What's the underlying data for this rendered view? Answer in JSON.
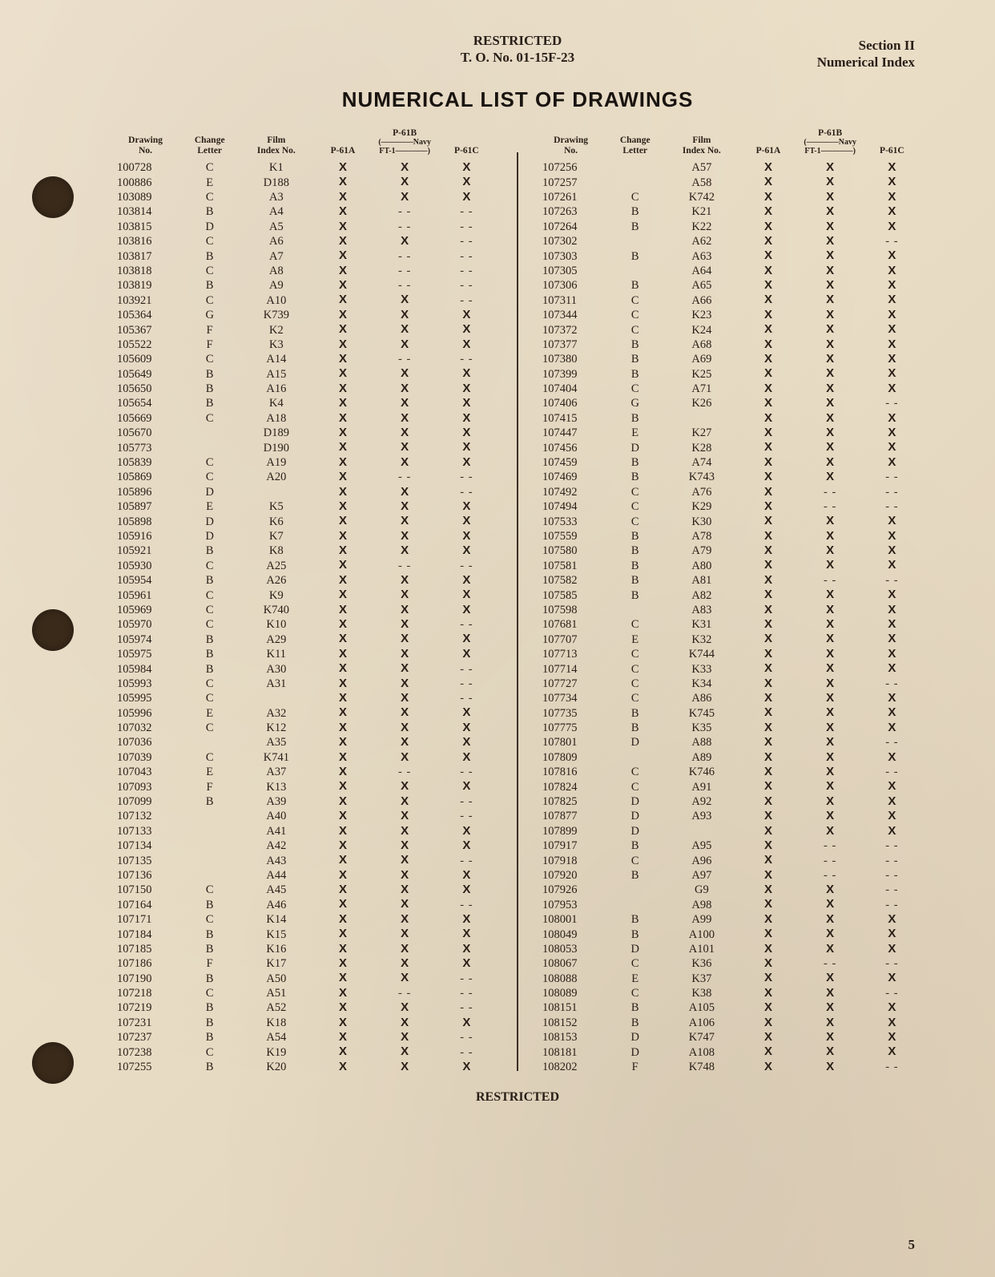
{
  "header": {
    "restricted": "RESTRICTED",
    "to_no": "T. O. No. 01-15F-23",
    "section": "Section II",
    "index_label": "Numerical Index"
  },
  "title": "NUMERICAL LIST OF DRAWINGS",
  "footer": {
    "restricted": "RESTRICTED",
    "page_number": "5"
  },
  "table_headers": {
    "drawing_no": "Drawing\nNo.",
    "change_letter": "Change\nLetter",
    "film_index_no": "Film\nIndex No.",
    "p61a": "P-61A",
    "p61b": "P-61B",
    "p61c": "P-61C",
    "navy_sub": "(————Navy FT-1————)"
  },
  "marks": {
    "x": "X",
    "dash": "- -"
  },
  "left_rows": [
    [
      "100728",
      "C",
      "K1",
      "X",
      "X",
      "X"
    ],
    [
      "100886",
      "E",
      "D188",
      "X",
      "X",
      "X"
    ],
    [
      "103089",
      "C",
      "A3",
      "X",
      "X",
      "X"
    ],
    [
      "103814",
      "B",
      "A4",
      "X",
      "- -",
      "- -"
    ],
    [
      "103815",
      "D",
      "A5",
      "X",
      "- -",
      "- -"
    ],
    [
      "103816",
      "C",
      "A6",
      "X",
      "X",
      "- -"
    ],
    [
      "103817",
      "B",
      "A7",
      "X",
      "- -",
      "- -"
    ],
    [
      "103818",
      "C",
      "A8",
      "X",
      "- -",
      "- -"
    ],
    [
      "103819",
      "B",
      "A9",
      "X",
      "- -",
      "- -"
    ],
    [
      "103921",
      "C",
      "A10",
      "X",
      "X",
      "- -"
    ],
    [
      "105364",
      "G",
      "K739",
      "X",
      "X",
      "X"
    ],
    [
      "105367",
      "F",
      "K2",
      "X",
      "X",
      "X"
    ],
    [
      "105522",
      "F",
      "K3",
      "X",
      "X",
      "X"
    ],
    [
      "105609",
      "C",
      "A14",
      "X",
      "- -",
      "- -"
    ],
    [
      "105649",
      "B",
      "A15",
      "X",
      "X",
      "X"
    ],
    [
      "105650",
      "B",
      "A16",
      "X",
      "X",
      "X"
    ],
    [
      "105654",
      "B",
      "K4",
      "X",
      "X",
      "X"
    ],
    [
      "105669",
      "C",
      "A18",
      "X",
      "X",
      "X"
    ],
    [
      "105670",
      "",
      "D189",
      "X",
      "X",
      "X"
    ],
    [
      "105773",
      "",
      "D190",
      "X",
      "X",
      "X"
    ],
    [
      "105839",
      "C",
      "A19",
      "X",
      "X",
      "X"
    ],
    [
      "105869",
      "C",
      "A20",
      "X",
      "- -",
      "- -"
    ],
    [
      "105896",
      "D",
      "",
      "X",
      "X",
      "- -"
    ],
    [
      "105897",
      "E",
      "K5",
      "X",
      "X",
      "X"
    ],
    [
      "105898",
      "D",
      "K6",
      "X",
      "X",
      "X"
    ],
    [
      "105916",
      "D",
      "K7",
      "X",
      "X",
      "X"
    ],
    [
      "105921",
      "B",
      "K8",
      "X",
      "X",
      "X"
    ],
    [
      "105930",
      "C",
      "A25",
      "X",
      "- -",
      "- -"
    ],
    [
      "105954",
      "B",
      "A26",
      "X",
      "X",
      "X"
    ],
    [
      "105961",
      "C",
      "K9",
      "X",
      "X",
      "X"
    ],
    [
      "105969",
      "C",
      "K740",
      "X",
      "X",
      "X"
    ],
    [
      "105970",
      "C",
      "K10",
      "X",
      "X",
      "- -"
    ],
    [
      "105974",
      "B",
      "A29",
      "X",
      "X",
      "X"
    ],
    [
      "105975",
      "B",
      "K11",
      "X",
      "X",
      "X"
    ],
    [
      "105984",
      "B",
      "A30",
      "X",
      "X",
      "- -"
    ],
    [
      "105993",
      "C",
      "A31",
      "X",
      "X",
      "- -"
    ],
    [
      "105995",
      "C",
      "",
      "X",
      "X",
      "- -"
    ],
    [
      "105996",
      "E",
      "A32",
      "X",
      "X",
      "X"
    ],
    [
      "107032",
      "C",
      "K12",
      "X",
      "X",
      "X"
    ],
    [
      "107036",
      "",
      "A35",
      "X",
      "X",
      "X"
    ],
    [
      "107039",
      "C",
      "K741",
      "X",
      "X",
      "X"
    ],
    [
      "107043",
      "E",
      "A37",
      "X",
      "- -",
      "- -"
    ],
    [
      "107093",
      "F",
      "K13",
      "X",
      "X",
      "X"
    ],
    [
      "107099",
      "B",
      "A39",
      "X",
      "X",
      "- -"
    ],
    [
      "107132",
      "",
      "A40",
      "X",
      "X",
      "- -"
    ],
    [
      "107133",
      "",
      "A41",
      "X",
      "X",
      "X"
    ],
    [
      "107134",
      "",
      "A42",
      "X",
      "X",
      "X"
    ],
    [
      "107135",
      "",
      "A43",
      "X",
      "X",
      "- -"
    ],
    [
      "107136",
      "",
      "A44",
      "X",
      "X",
      "X"
    ],
    [
      "107150",
      "C",
      "A45",
      "X",
      "X",
      "X"
    ],
    [
      "107164",
      "B",
      "A46",
      "X",
      "X",
      "- -"
    ],
    [
      "107171",
      "C",
      "K14",
      "X",
      "X",
      "X"
    ],
    [
      "107184",
      "B",
      "K15",
      "X",
      "X",
      "X"
    ],
    [
      "107185",
      "B",
      "K16",
      "X",
      "X",
      "X"
    ],
    [
      "107186",
      "F",
      "K17",
      "X",
      "X",
      "X"
    ],
    [
      "107190",
      "B",
      "A50",
      "X",
      "X",
      "- -"
    ],
    [
      "107218",
      "C",
      "A51",
      "X",
      "- -",
      "- -"
    ],
    [
      "107219",
      "B",
      "A52",
      "X",
      "X",
      "- -"
    ],
    [
      "107231",
      "B",
      "K18",
      "X",
      "X",
      "X"
    ],
    [
      "107237",
      "B",
      "A54",
      "X",
      "X",
      "- -"
    ],
    [
      "107238",
      "C",
      "K19",
      "X",
      "X",
      "- -"
    ],
    [
      "107255",
      "B",
      "K20",
      "X",
      "X",
      "X"
    ]
  ],
  "right_rows": [
    [
      "107256",
      "",
      "A57",
      "X",
      "X",
      "X"
    ],
    [
      "107257",
      "",
      "A58",
      "X",
      "X",
      "X"
    ],
    [
      "107261",
      "C",
      "K742",
      "X",
      "X",
      "X"
    ],
    [
      "107263",
      "B",
      "K21",
      "X",
      "X",
      "X"
    ],
    [
      "107264",
      "B",
      "K22",
      "X",
      "X",
      "X"
    ],
    [
      "107302",
      "",
      "A62",
      "X",
      "X",
      "- -"
    ],
    [
      "107303",
      "B",
      "A63",
      "X",
      "X",
      "X"
    ],
    [
      "107305",
      "",
      "A64",
      "X",
      "X",
      "X"
    ],
    [
      "107306",
      "B",
      "A65",
      "X",
      "X",
      "X"
    ],
    [
      "107311",
      "C",
      "A66",
      "X",
      "X",
      "X"
    ],
    [
      "107344",
      "C",
      "K23",
      "X",
      "X",
      "X"
    ],
    [
      "107372",
      "C",
      "K24",
      "X",
      "X",
      "X"
    ],
    [
      "107377",
      "B",
      "A68",
      "X",
      "X",
      "X"
    ],
    [
      "107380",
      "B",
      "A69",
      "X",
      "X",
      "X"
    ],
    [
      "107399",
      "B",
      "K25",
      "X",
      "X",
      "X"
    ],
    [
      "107404",
      "C",
      "A71",
      "X",
      "X",
      "X"
    ],
    [
      "107406",
      "G",
      "K26",
      "X",
      "X",
      "- -"
    ],
    [
      "107415",
      "B",
      "",
      "X",
      "X",
      "X"
    ],
    [
      "107447",
      "E",
      "K27",
      "X",
      "X",
      "X"
    ],
    [
      "107456",
      "D",
      "K28",
      "X",
      "X",
      "X"
    ],
    [
      "107459",
      "B",
      "A74",
      "X",
      "X",
      "X"
    ],
    [
      "107469",
      "B",
      "K743",
      "X",
      "X",
      "- -"
    ],
    [
      "107492",
      "C",
      "A76",
      "X",
      "- -",
      "- -"
    ],
    [
      "107494",
      "C",
      "K29",
      "X",
      "- -",
      "- -"
    ],
    [
      "107533",
      "C",
      "K30",
      "X",
      "X",
      "X"
    ],
    [
      "107559",
      "B",
      "A78",
      "X",
      "X",
      "X"
    ],
    [
      "107580",
      "B",
      "A79",
      "X",
      "X",
      "X"
    ],
    [
      "107581",
      "B",
      "A80",
      "X",
      "X",
      "X"
    ],
    [
      "107582",
      "B",
      "A81",
      "X",
      "- -",
      "- -"
    ],
    [
      "107585",
      "B",
      "A82",
      "X",
      "X",
      "X"
    ],
    [
      "107598",
      "",
      "A83",
      "X",
      "X",
      "X"
    ],
    [
      "107681",
      "C",
      "K31",
      "X",
      "X",
      "X"
    ],
    [
      "107707",
      "E",
      "K32",
      "X",
      "X",
      "X"
    ],
    [
      "107713",
      "C",
      "K744",
      "X",
      "X",
      "X"
    ],
    [
      "107714",
      "C",
      "K33",
      "X",
      "X",
      "X"
    ],
    [
      "107727",
      "C",
      "K34",
      "X",
      "X",
      "- -"
    ],
    [
      "107734",
      "C",
      "A86",
      "X",
      "X",
      "X"
    ],
    [
      "107735",
      "B",
      "K745",
      "X",
      "X",
      "X"
    ],
    [
      "107775",
      "B",
      "K35",
      "X",
      "X",
      "X"
    ],
    [
      "107801",
      "D",
      "A88",
      "X",
      "X",
      "- -"
    ],
    [
      "107809",
      "",
      "A89",
      "X",
      "X",
      "X"
    ],
    [
      "107816",
      "C",
      "K746",
      "X",
      "X",
      "- -"
    ],
    [
      "107824",
      "C",
      "A91",
      "X",
      "X",
      "X"
    ],
    [
      "107825",
      "D",
      "A92",
      "X",
      "X",
      "X"
    ],
    [
      "107877",
      "D",
      "A93",
      "X",
      "X",
      "X"
    ],
    [
      "107899",
      "D",
      "",
      "X",
      "X",
      "X"
    ],
    [
      "107917",
      "B",
      "A95",
      "X",
      "- -",
      "- -"
    ],
    [
      "107918",
      "C",
      "A96",
      "X",
      "- -",
      "- -"
    ],
    [
      "107920",
      "B",
      "A97",
      "X",
      "- -",
      "- -"
    ],
    [
      "107926",
      "",
      "G9",
      "X",
      "X",
      "- -"
    ],
    [
      "107953",
      "",
      "A98",
      "X",
      "X",
      "- -"
    ],
    [
      "108001",
      "B",
      "A99",
      "X",
      "X",
      "X"
    ],
    [
      "108049",
      "B",
      "A100",
      "X",
      "X",
      "X"
    ],
    [
      "108053",
      "D",
      "A101",
      "X",
      "X",
      "X"
    ],
    [
      "108067",
      "C",
      "K36",
      "X",
      "- -",
      "- -"
    ],
    [
      "108088",
      "E",
      "K37",
      "X",
      "X",
      "X"
    ],
    [
      "108089",
      "C",
      "K38",
      "X",
      "X",
      "- -"
    ],
    [
      "108151",
      "B",
      "A105",
      "X",
      "X",
      "X"
    ],
    [
      "108152",
      "B",
      "A106",
      "X",
      "X",
      "X"
    ],
    [
      "108153",
      "D",
      "K747",
      "X",
      "X",
      "X"
    ],
    [
      "108181",
      "D",
      "A108",
      "X",
      "X",
      "X"
    ],
    [
      "108202",
      "F",
      "K748",
      "X",
      "X",
      "- -"
    ]
  ]
}
